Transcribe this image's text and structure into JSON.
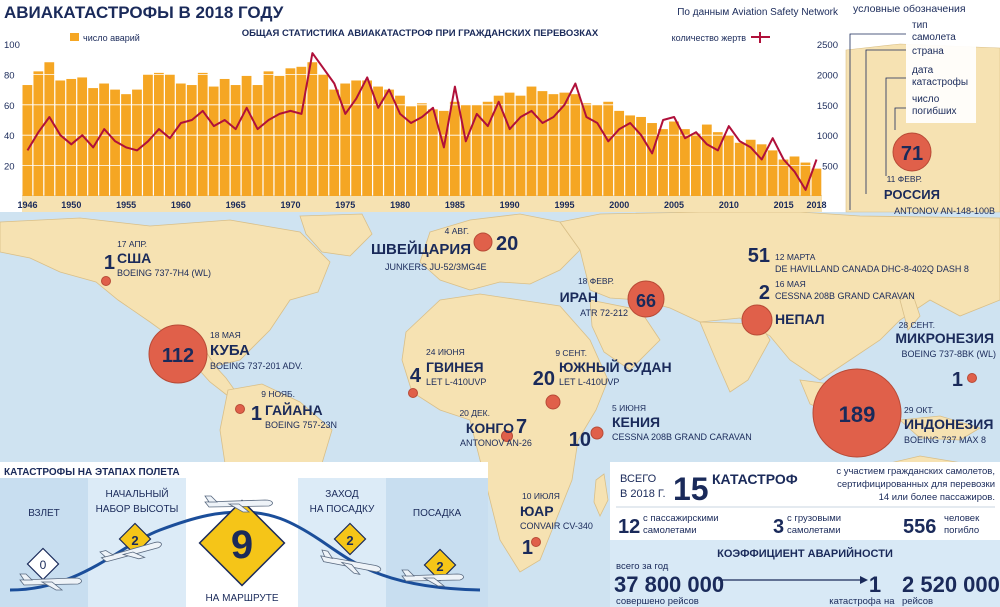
{
  "title": "АВИАКАТАСТРОФЫ В 2018 ГОДУ",
  "source": "По данным Aviation Safety Network",
  "chart_title": "ОБЩАЯ СТАТИСТИКА АВИАКАТАСТРОФ ПРИ ГРАЖДАНСКИХ ПЕРЕВОЗКАХ",
  "colors": {
    "bar": "#f5a623",
    "line": "#b0103a",
    "circle": "#e0604a",
    "map_bg": "#cfe3f1",
    "land": "#f6e2b2",
    "navy": "#1a2a5a"
  },
  "chart_data": {
    "type": "bar",
    "title": "ОБЩАЯ СТАТИСТИКА АВИАКАТАСТРОФ ПРИ ГРАЖДАНСКИХ ПЕРЕВОЗКАХ",
    "x_range": [
      1946,
      2018
    ],
    "x_ticks": [
      1946,
      1950,
      1955,
      1960,
      1965,
      1970,
      1975,
      1980,
      1985,
      1990,
      1995,
      2000,
      2005,
      2010,
      2015,
      2018
    ],
    "ylim_left": [
      0,
      100
    ],
    "ylim_right": [
      0,
      2500
    ],
    "y_ticks_left": [
      20,
      40,
      60,
      80,
      100
    ],
    "y_ticks_right": [
      500,
      1000,
      1500,
      2000,
      2500
    ],
    "series": [
      {
        "name": "число аварий",
        "type": "bar",
        "axis": "left",
        "x": [
          1946,
          1947,
          1948,
          1949,
          1950,
          1951,
          1952,
          1953,
          1954,
          1955,
          1956,
          1957,
          1958,
          1959,
          1960,
          1961,
          1962,
          1963,
          1964,
          1965,
          1966,
          1967,
          1968,
          1969,
          1970,
          1971,
          1972,
          1973,
          1974,
          1975,
          1976,
          1977,
          1978,
          1979,
          1980,
          1981,
          1982,
          1983,
          1984,
          1985,
          1986,
          1987,
          1988,
          1989,
          1990,
          1991,
          1992,
          1993,
          1994,
          1995,
          1996,
          1997,
          1998,
          1999,
          2000,
          2001,
          2002,
          2003,
          2004,
          2005,
          2006,
          2007,
          2008,
          2009,
          2010,
          2011,
          2012,
          2013,
          2014,
          2015,
          2016,
          2017,
          2018
        ],
        "values": [
          73,
          82,
          88,
          76,
          77,
          78,
          71,
          74,
          70,
          67,
          70,
          80,
          81,
          80,
          74,
          73,
          81,
          72,
          77,
          73,
          79,
          73,
          82,
          79,
          84,
          85,
          88,
          80,
          70,
          74,
          76,
          76,
          72,
          70,
          66,
          59,
          61,
          57,
          56,
          62,
          60,
          60,
          62,
          66,
          68,
          66,
          72,
          69,
          67,
          68,
          67,
          61,
          60,
          62,
          56,
          53,
          52,
          48,
          44,
          49,
          44,
          41,
          47,
          42,
          40,
          35,
          37,
          34,
          30,
          24,
          26,
          22,
          18
        ]
      },
      {
        "name": "количество жертв",
        "type": "line",
        "axis": "right",
        "x": [
          1946,
          1947,
          1948,
          1949,
          1950,
          1951,
          1952,
          1953,
          1954,
          1955,
          1956,
          1957,
          1958,
          1959,
          1960,
          1961,
          1962,
          1963,
          1964,
          1965,
          1966,
          1967,
          1968,
          1969,
          1970,
          1971,
          1972,
          1973,
          1974,
          1975,
          1976,
          1977,
          1978,
          1979,
          1980,
          1981,
          1982,
          1983,
          1984,
          1985,
          1986,
          1987,
          1988,
          1989,
          1990,
          1991,
          1992,
          1993,
          1994,
          1995,
          1996,
          1997,
          1998,
          1999,
          2000,
          2001,
          2002,
          2003,
          2004,
          2005,
          2006,
          2007,
          2008,
          2009,
          2010,
          2011,
          2012,
          2013,
          2014,
          2015,
          2016,
          2017,
          2018
        ],
        "values": [
          750,
          1050,
          1300,
          1000,
          850,
          1000,
          800,
          1100,
          900,
          800,
          750,
          900,
          1100,
          950,
          1200,
          1250,
          1400,
          1150,
          1250,
          1100,
          1450,
          1100,
          1250,
          1350,
          1400,
          1350,
          2350,
          2100,
          1850,
          1350,
          1600,
          1950,
          1450,
          1750,
          1350,
          1200,
          1300,
          1450,
          800,
          1800,
          900,
          1350,
          1150,
          1550,
          1100,
          1300,
          1400,
          1200,
          1300,
          1500,
          1850,
          1300,
          1200,
          900,
          1100,
          1200,
          1000,
          700,
          1250,
          1300,
          950,
          1050,
          850,
          750,
          1150,
          900,
          800,
          600,
          950,
          600,
          400,
          100,
          600
        ]
      }
    ]
  },
  "legend": {
    "heading": "условные обозначения",
    "items": [
      "тип самолета",
      "страна",
      "дата катастрофы",
      "число погибших"
    ],
    "sample_number": "71"
  },
  "legend_example": {
    "date": "11 ФЕВР.",
    "country": "РОССИЯ",
    "aircraft": "ANTONOV AN-148-100B"
  },
  "incidents": [
    {
      "country": "США",
      "date": "17 АПР.",
      "aircraft": "BOEING 737-7H4 (WL)",
      "deaths": "1"
    },
    {
      "country": "КУБА",
      "date": "18 МАЯ",
      "aircraft": "BOEING 737-201 ADV.",
      "deaths": "112"
    },
    {
      "country": "ГАЙАНА",
      "date": "9 НОЯБ.",
      "aircraft": "BOEING 757-23N",
      "deaths": "1"
    },
    {
      "country": "ШВЕЙЦАРИЯ",
      "date": "4 АВГ.",
      "aircraft": "JUNKERS JU-52/3MG4E",
      "deaths": "20"
    },
    {
      "country": "ИРАН",
      "date": "18 ФЕВР.",
      "aircraft": "ATR 72-212",
      "deaths": "66"
    },
    {
      "country": "НЕПАЛ",
      "date": "12 МАРТА",
      "aircraft": "DE HAVILLAND CANADA DHC-8-402Q DASH 8",
      "deaths": "51"
    },
    {
      "country": "НЕПАЛ",
      "date": "16 МАЯ",
      "aircraft": "CESSNA 208B GRAND CARAVAN",
      "deaths": "2"
    },
    {
      "country": "ГВИНЕЯ",
      "date": "24 ИЮНЯ",
      "aircraft": "LET L-410UVP",
      "deaths": "4"
    },
    {
      "country": "ЮЖНЫЙ СУДАН",
      "date": "9 СЕНТ.",
      "aircraft": "LET L-410UVP",
      "deaths": "20"
    },
    {
      "country": "КОНГО",
      "date": "20 ДЕК.",
      "aircraft": "ANTONOV AN-26",
      "deaths": "7"
    },
    {
      "country": "КЕНИЯ",
      "date": "5 ИЮНЯ",
      "aircraft": "CESSNA 208B GRAND CARAVAN",
      "deaths": "10"
    },
    {
      "country": "ЮАР",
      "date": "10 ИЮЛЯ",
      "aircraft": "CONVAIR CV-340",
      "deaths": "1"
    },
    {
      "country": "МИКРОНЕЗИЯ",
      "date": "28 СЕНТ.",
      "aircraft": "BOEING 737-8BK (WL)",
      "deaths": "1"
    },
    {
      "country": "ИНДОНЕЗИЯ",
      "date": "29 ОКТ.",
      "aircraft": "BOEING 737 MAX 8",
      "deaths": "189"
    }
  ],
  "flight_phases": {
    "title": "КАТАСТРОФЫ НА ЭТАПАХ ПОЛЕТА",
    "phases": [
      {
        "name": "ВЗЛЕТ",
        "count": "0"
      },
      {
        "name": "НАЧАЛЬНЫЙ НАБОР ВЫСОТЫ",
        "count": "2"
      },
      {
        "name": "НА МАРШРУТЕ",
        "count": "9"
      },
      {
        "name": "ЗАХОД НА ПОСАДКУ",
        "count": "2"
      },
      {
        "name": "ПОСАДКА",
        "count": "2"
      }
    ]
  },
  "summary": {
    "total_label": "ВСЕГО В 2018 Г.",
    "total_count": "15",
    "total_unit": "КАТАСТРОФ",
    "total_desc": "с участием гражданских самолетов, сертифицированных для перевозки 14 или более пассажиров.",
    "passenger_count": "12",
    "passenger_label": "с пассажирскими самолетами",
    "cargo_count": "3",
    "cargo_label": "с грузовыми самолетами",
    "deaths_count": "556",
    "deaths_label": "человек погибло",
    "rate_title": "КОЭФФИЦИЕНТ АВАРИЙНОСТИ",
    "flights_label": "всего за год",
    "flights_count": "37 800 000",
    "flights_unit": "совершено рейсов",
    "rate_one": "1",
    "rate_one_label": "катастрофа",
    "rate_per": "на",
    "rate_flights": "2 520 000",
    "rate_flights_unit": "рейсов"
  }
}
